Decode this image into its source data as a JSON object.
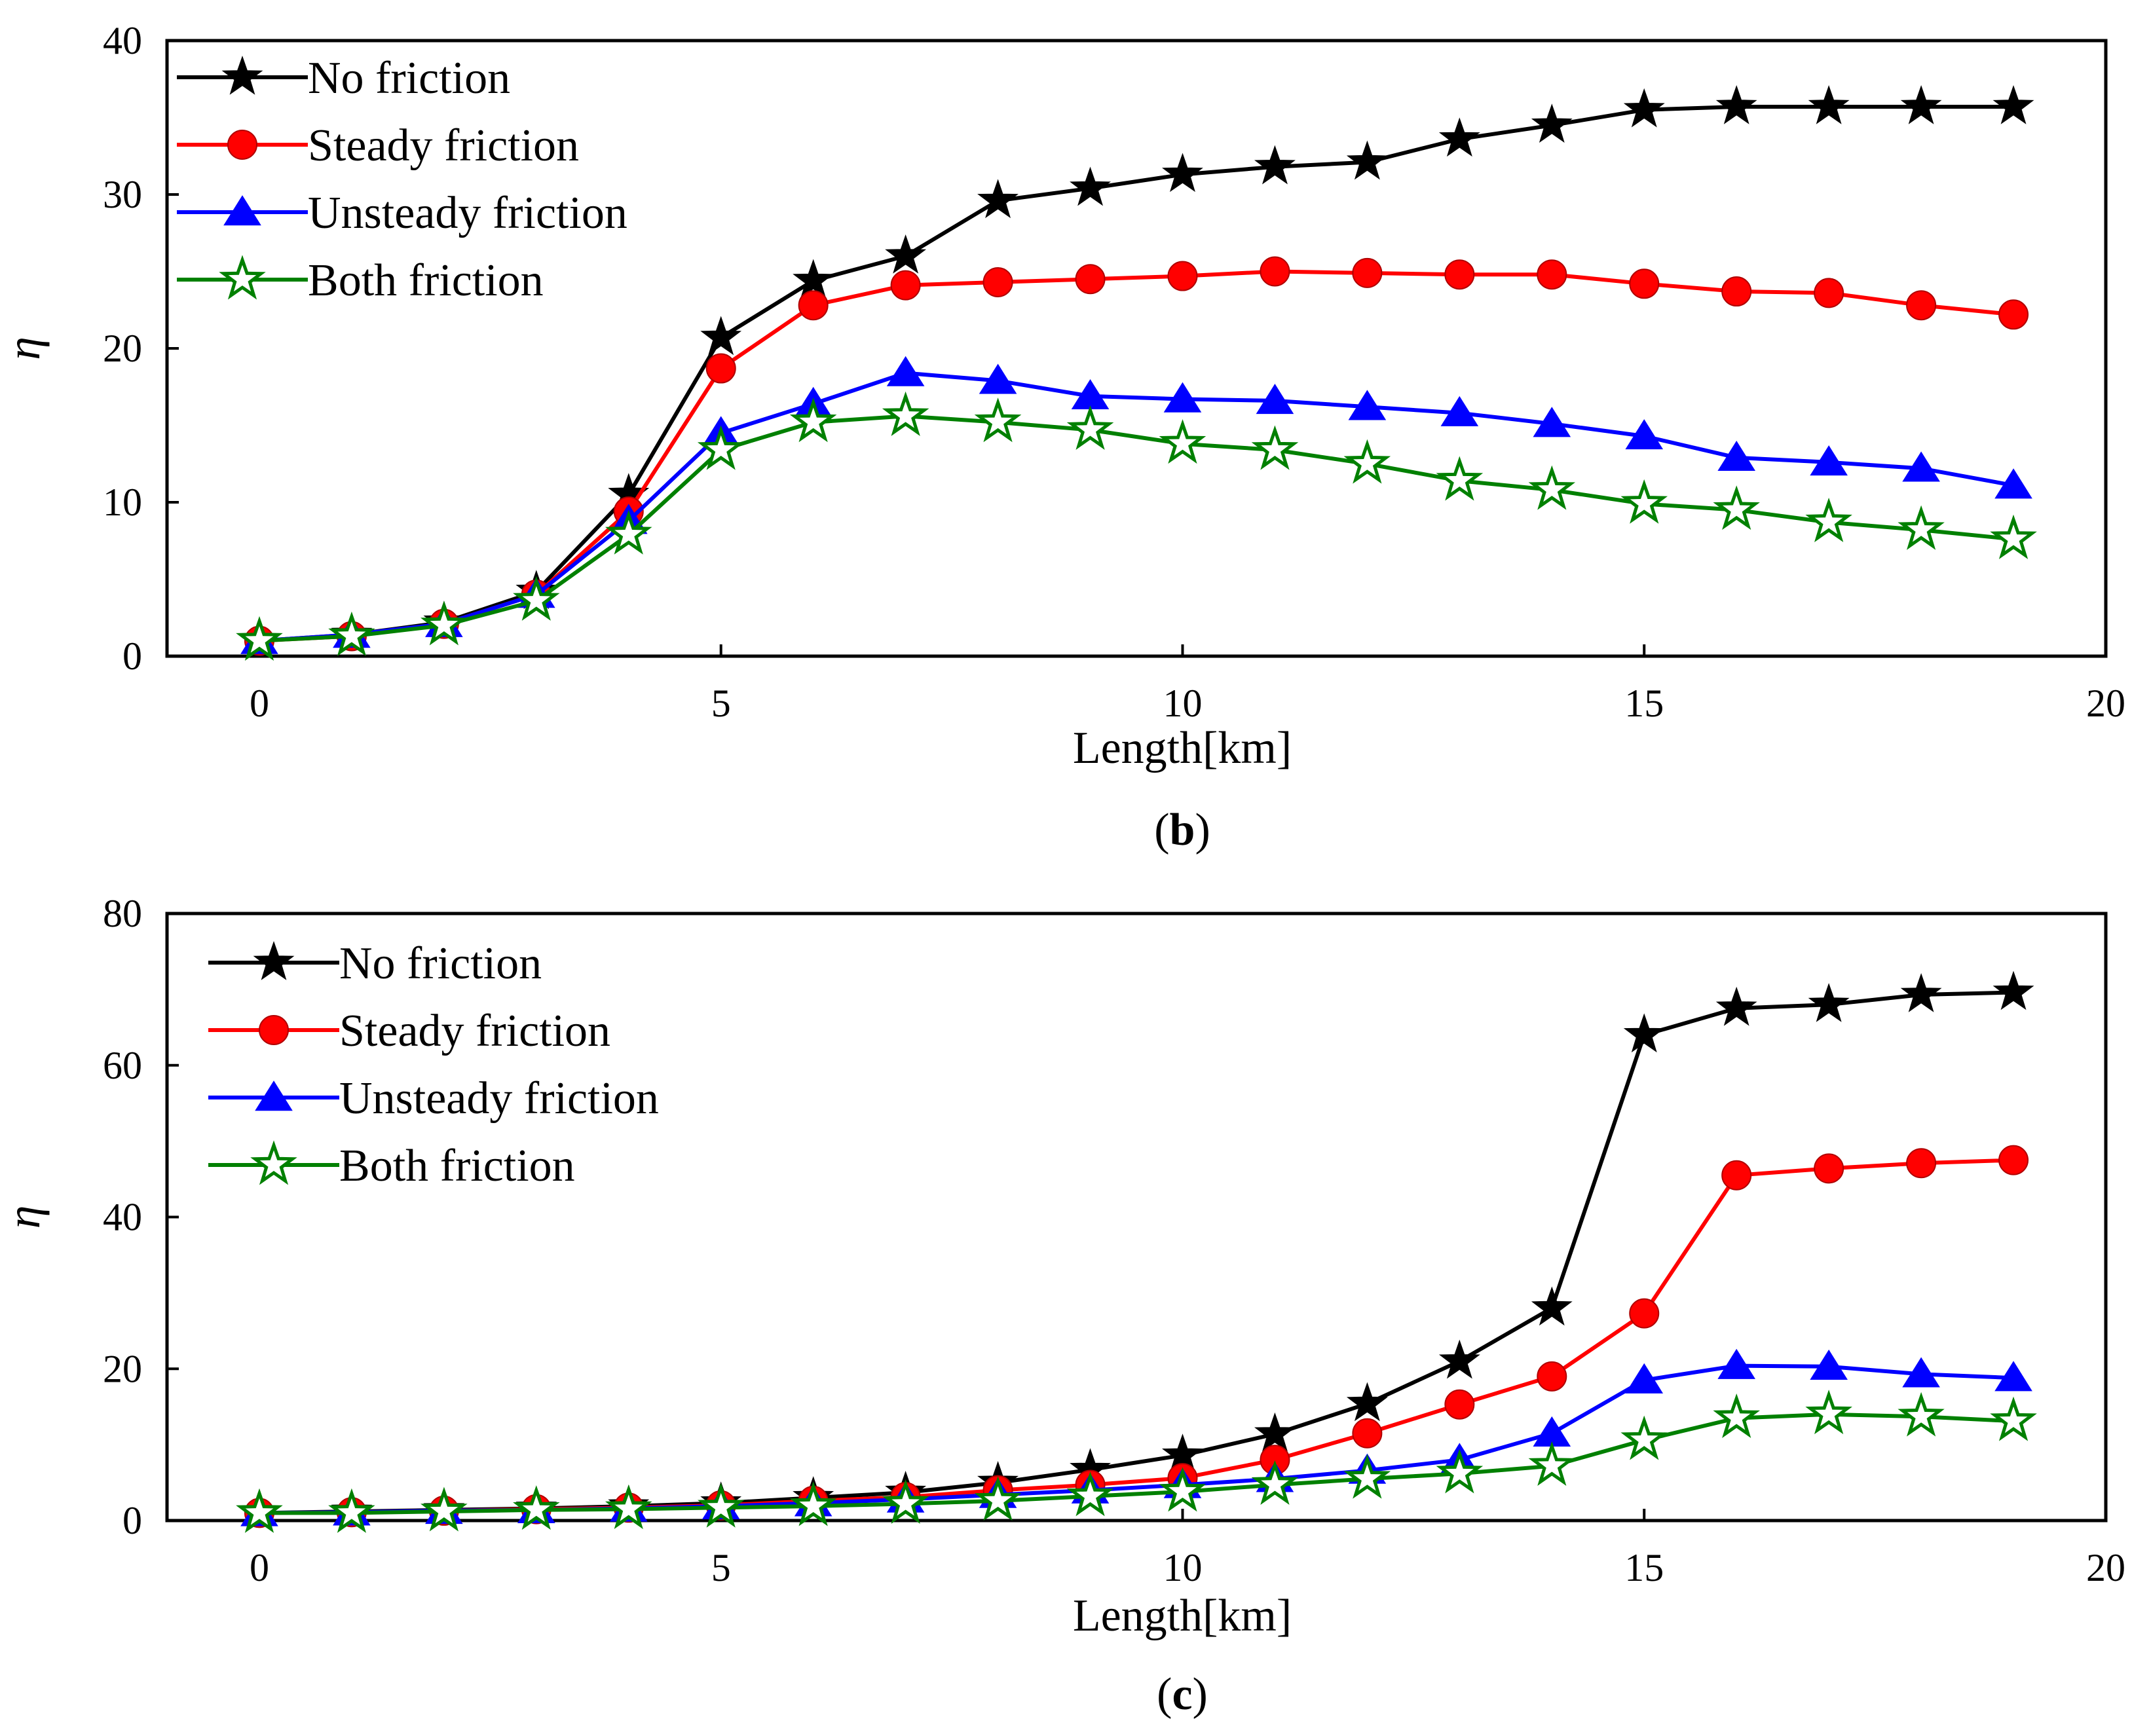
{
  "chart_data": [
    {
      "type": "line",
      "panel_label": "b",
      "title": "",
      "xlabel": "Length[km]",
      "ylabel": "η",
      "xlim": [
        -1,
        20
      ],
      "ylim": [
        0,
        40
      ],
      "xticks": [
        0,
        5,
        10,
        15,
        20
      ],
      "yticks": [
        0,
        10,
        20,
        30,
        40
      ],
      "legend_position": "top-left",
      "x": [
        0,
        1,
        2,
        3,
        4,
        5,
        6,
        7,
        8,
        9,
        10,
        11,
        12,
        13,
        14,
        15,
        16,
        17,
        18,
        19
      ],
      "series": [
        {
          "name": "No friction",
          "marker": "star-filled",
          "color": "#000000",
          "values": [
            1,
            1.4,
            2.2,
            4.2,
            10.5,
            20.7,
            24.4,
            26,
            29.6,
            30.4,
            31.3,
            31.8,
            32.1,
            33.6,
            34.5,
            35.5,
            35.7,
            35.7,
            35.7,
            35.7
          ]
        },
        {
          "name": "Steady friction",
          "marker": "circle",
          "color": "#ff0000",
          "values": [
            1,
            1.3,
            2.1,
            4,
            9.4,
            18.7,
            22.8,
            24.1,
            24.3,
            24.5,
            24.7,
            25,
            24.9,
            24.8,
            24.8,
            24.2,
            23.7,
            23.6,
            22.8,
            22.2
          ]
        },
        {
          "name": "Unsteady friction",
          "marker": "triangle",
          "color": "#0000ff",
          "values": [
            1,
            1.4,
            2.1,
            4,
            8.8,
            14.5,
            16.4,
            18.4,
            17.9,
            16.9,
            16.7,
            16.6,
            16.2,
            15.8,
            15.1,
            14.3,
            12.9,
            12.6,
            12.2,
            11.1
          ]
        },
        {
          "name": "Both friction",
          "marker": "star-open",
          "color": "#008000",
          "values": [
            1,
            1.3,
            2,
            3.6,
            7.9,
            13.4,
            15.2,
            15.6,
            15.2,
            14.7,
            13.8,
            13.4,
            12.5,
            11.4,
            10.8,
            9.9,
            9.5,
            8.7,
            8.2,
            7.6
          ]
        }
      ]
    },
    {
      "type": "line",
      "panel_label": "c",
      "title": "",
      "xlabel": "Length[km]",
      "ylabel": "η",
      "xlim": [
        -1,
        20
      ],
      "ylim": [
        0,
        80
      ],
      "xticks": [
        0,
        5,
        10,
        15,
        20
      ],
      "yticks": [
        0,
        20,
        40,
        60,
        80
      ],
      "legend_position": "top-left",
      "x": [
        0,
        1,
        2,
        3,
        4,
        5,
        6,
        7,
        8,
        9,
        10,
        11,
        12,
        13,
        14,
        15,
        16,
        17,
        18,
        19
      ],
      "series": [
        {
          "name": "No friction",
          "marker": "star-filled",
          "color": "#000000",
          "values": [
            1,
            1.2,
            1.4,
            1.6,
            1.9,
            2.3,
            3,
            3.7,
            5,
            6.7,
            8.6,
            11.4,
            15.4,
            21,
            28,
            64,
            67.5,
            68,
            69.3,
            69.6
          ]
        },
        {
          "name": "Steady friction",
          "marker": "circle",
          "color": "#ff0000",
          "values": [
            1,
            1.1,
            1.3,
            1.5,
            1.7,
            2,
            2.6,
            3.1,
            4,
            4.7,
            5.6,
            8,
            11.5,
            15.3,
            19,
            27.3,
            45.5,
            46.4,
            47.1,
            47.5
          ]
        },
        {
          "name": "Unsteady friction",
          "marker": "triangle",
          "color": "#0000ff",
          "values": [
            1,
            1.1,
            1.3,
            1.4,
            1.6,
            1.9,
            2.3,
            2.8,
            3.4,
            4,
            4.7,
            5.5,
            6.6,
            8,
            11.5,
            18.5,
            20.4,
            20.3,
            19.3,
            18.8
          ]
        },
        {
          "name": "Both friction",
          "marker": "star-open",
          "color": "#008000",
          "values": [
            1,
            1,
            1.2,
            1.4,
            1.5,
            1.7,
            1.9,
            2.2,
            2.6,
            3.2,
            3.8,
            4.7,
            5.5,
            6.2,
            7.2,
            10.6,
            13.5,
            14,
            13.7,
            13.1
          ]
        }
      ]
    }
  ]
}
